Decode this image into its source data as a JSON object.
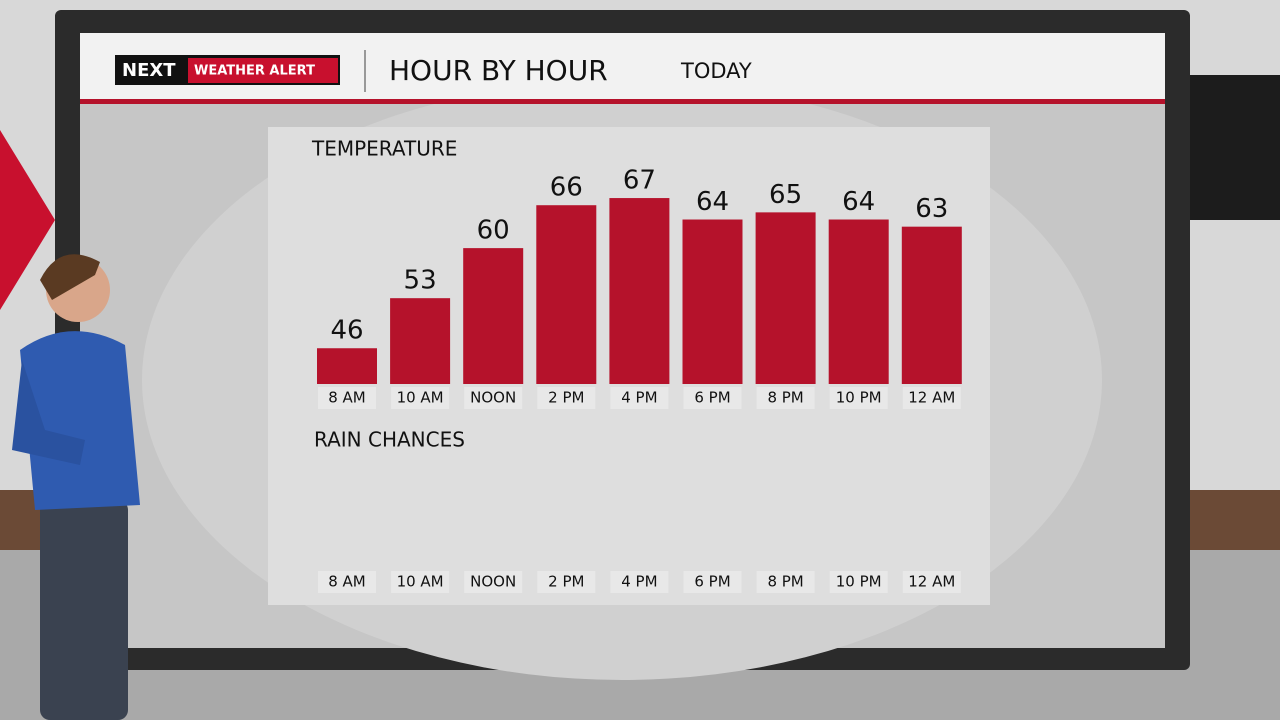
{
  "header": {
    "brand": "NEXT",
    "alert": "WEATHER ALERT",
    "title": "HOUR BY HOUR",
    "subtitle": "TODAY"
  },
  "chart_data": [
    {
      "type": "bar",
      "title": "TEMPERATURE",
      "categories": [
        "8 AM",
        "10 AM",
        "NOON",
        "2 PM",
        "4 PM",
        "6 PM",
        "8 PM",
        "10 PM",
        "12 AM"
      ],
      "values": [
        46,
        53,
        60,
        66,
        67,
        64,
        65,
        64,
        63
      ],
      "color": "#b5122b",
      "ylim": [
        41,
        74
      ]
    },
    {
      "type": "bar",
      "title": "RAIN CHANCES",
      "categories": [
        "8 AM",
        "10 AM",
        "NOON",
        "2 PM",
        "4 PM",
        "6 PM",
        "8 PM",
        "10 PM",
        "12 AM"
      ]
    }
  ]
}
